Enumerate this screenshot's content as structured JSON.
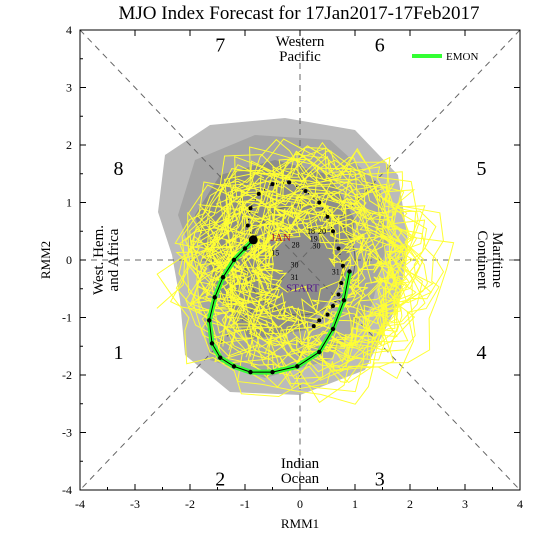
{
  "chart_data": {
    "type": "line",
    "title": "MJO Index Forecast for 17Jan2017-17Feb2017",
    "xlabel": "RMM1",
    "ylabel": "RMM2",
    "xlim": [
      -4,
      4
    ],
    "ylim": [
      -4,
      4
    ],
    "x_ticks": [
      "-4",
      "-3",
      "-2",
      "-1",
      "0",
      "1",
      "2",
      "3",
      "4"
    ],
    "y_ticks": [
      "-4",
      "-3",
      "-2",
      "-1",
      "0",
      "1",
      "2",
      "3",
      "4"
    ],
    "phases": [
      {
        "label": "1",
        "x": -3.3,
        "y": -1.6
      },
      {
        "label": "2",
        "x": -1.45,
        "y": -3.8
      },
      {
        "label": "3",
        "x": 1.45,
        "y": -3.8
      },
      {
        "label": "4",
        "x": 3.3,
        "y": -1.6
      },
      {
        "label": "5",
        "x": 3.3,
        "y": 1.6
      },
      {
        "label": "6",
        "x": 1.45,
        "y": 3.75
      },
      {
        "label": "7",
        "x": -1.45,
        "y": 3.75
      },
      {
        "label": "8",
        "x": -3.3,
        "y": 1.6
      }
    ],
    "regions": {
      "top": [
        "Western",
        "Pacific"
      ],
      "bottom": [
        "Indian",
        "Ocean"
      ],
      "left": [
        "West. Hem.",
        "and Africa"
      ],
      "right": [
        "Maritime",
        "Continent"
      ]
    },
    "legend": {
      "label": "EMON",
      "color": "#33ff33",
      "position": "top-right"
    },
    "annotations": {
      "start": "START",
      "month": "JAN"
    },
    "day_labels": [
      {
        "t": "30",
        "x": 0.3,
        "y": 0.2
      },
      {
        "t": "31",
        "x": 0.65,
        "y": -0.25
      },
      {
        "t": "20",
        "x": 0.4,
        "y": 0.45
      },
      {
        "t": "19",
        "x": 0.25,
        "y": 0.32
      },
      {
        "t": "15",
        "x": -0.45,
        "y": 0.08
      },
      {
        "t": "28",
        "x": -0.08,
        "y": 0.22
      },
      {
        "t": "30",
        "x": -0.1,
        "y": -0.13
      },
      {
        "t": "31",
        "x": -0.1,
        "y": -0.35
      },
      {
        "t": "18",
        "x": 0.2,
        "y": 0.45
      },
      {
        "t": "1",
        "x": -0.8,
        "y": 0.35
      }
    ],
    "ensemble_mean": {
      "name": "EMON",
      "x": [
        -0.85,
        -1.0,
        -1.2,
        -1.4,
        -1.55,
        -1.65,
        -1.6,
        -1.45,
        -1.2,
        -0.9,
        -0.5,
        -0.05,
        0.35,
        0.6,
        0.8,
        0.9
      ],
      "y": [
        0.35,
        0.2,
        0.0,
        -0.3,
        -0.65,
        -1.05,
        -1.45,
        -1.7,
        -1.85,
        -1.95,
        -1.95,
        -1.85,
        -1.6,
        -1.2,
        -0.7,
        -0.2
      ]
    },
    "observed": {
      "x": [
        -0.85,
        -0.95,
        -0.9,
        -0.75,
        -0.5,
        -0.2,
        0.1,
        0.35,
        0.5,
        0.6,
        0.7,
        0.78,
        0.75,
        0.7,
        0.6,
        0.5,
        0.35,
        0.25
      ],
      "y": [
        0.35,
        0.6,
        0.9,
        1.15,
        1.32,
        1.35,
        1.2,
        1.0,
        0.75,
        0.5,
        0.2,
        -0.1,
        -0.4,
        -0.6,
        -0.8,
        -0.95,
        -1.05,
        -1.15
      ]
    }
  }
}
